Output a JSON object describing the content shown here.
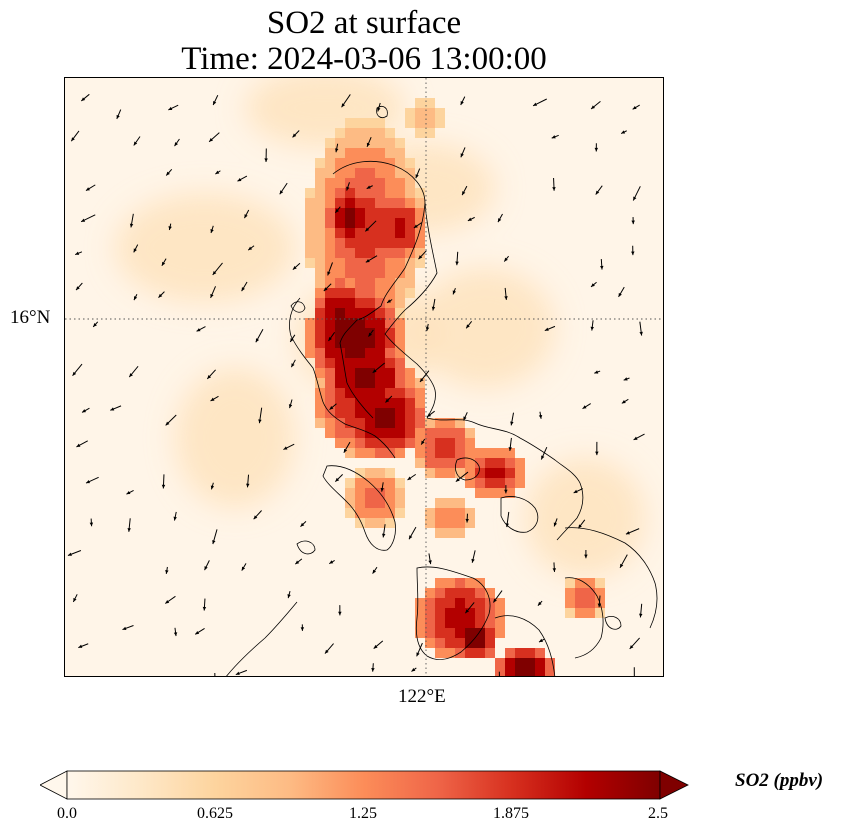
{
  "title": {
    "line1": "SO2 at surface",
    "line2": "Time: 2024-03-06 13:00:00"
  },
  "map": {
    "lat_label": "16°N",
    "lon_label": "122°E",
    "gridline_style": "dotted",
    "field": "SO2 concentration shaded with wind vectors and coastlines",
    "colormap": "OrRd",
    "colors": [
      "#fff7ec",
      "#fee8c8",
      "#fdd49e",
      "#fdbb84",
      "#fc8d59",
      "#ef6548",
      "#d7301f",
      "#b30000",
      "#7f0000"
    ]
  },
  "colorbar": {
    "ticks": [
      "0.0",
      "0.625",
      "1.25",
      "1.875",
      "2.5"
    ],
    "units_label": "SO2 (ppbv)",
    "extend": "both"
  }
}
